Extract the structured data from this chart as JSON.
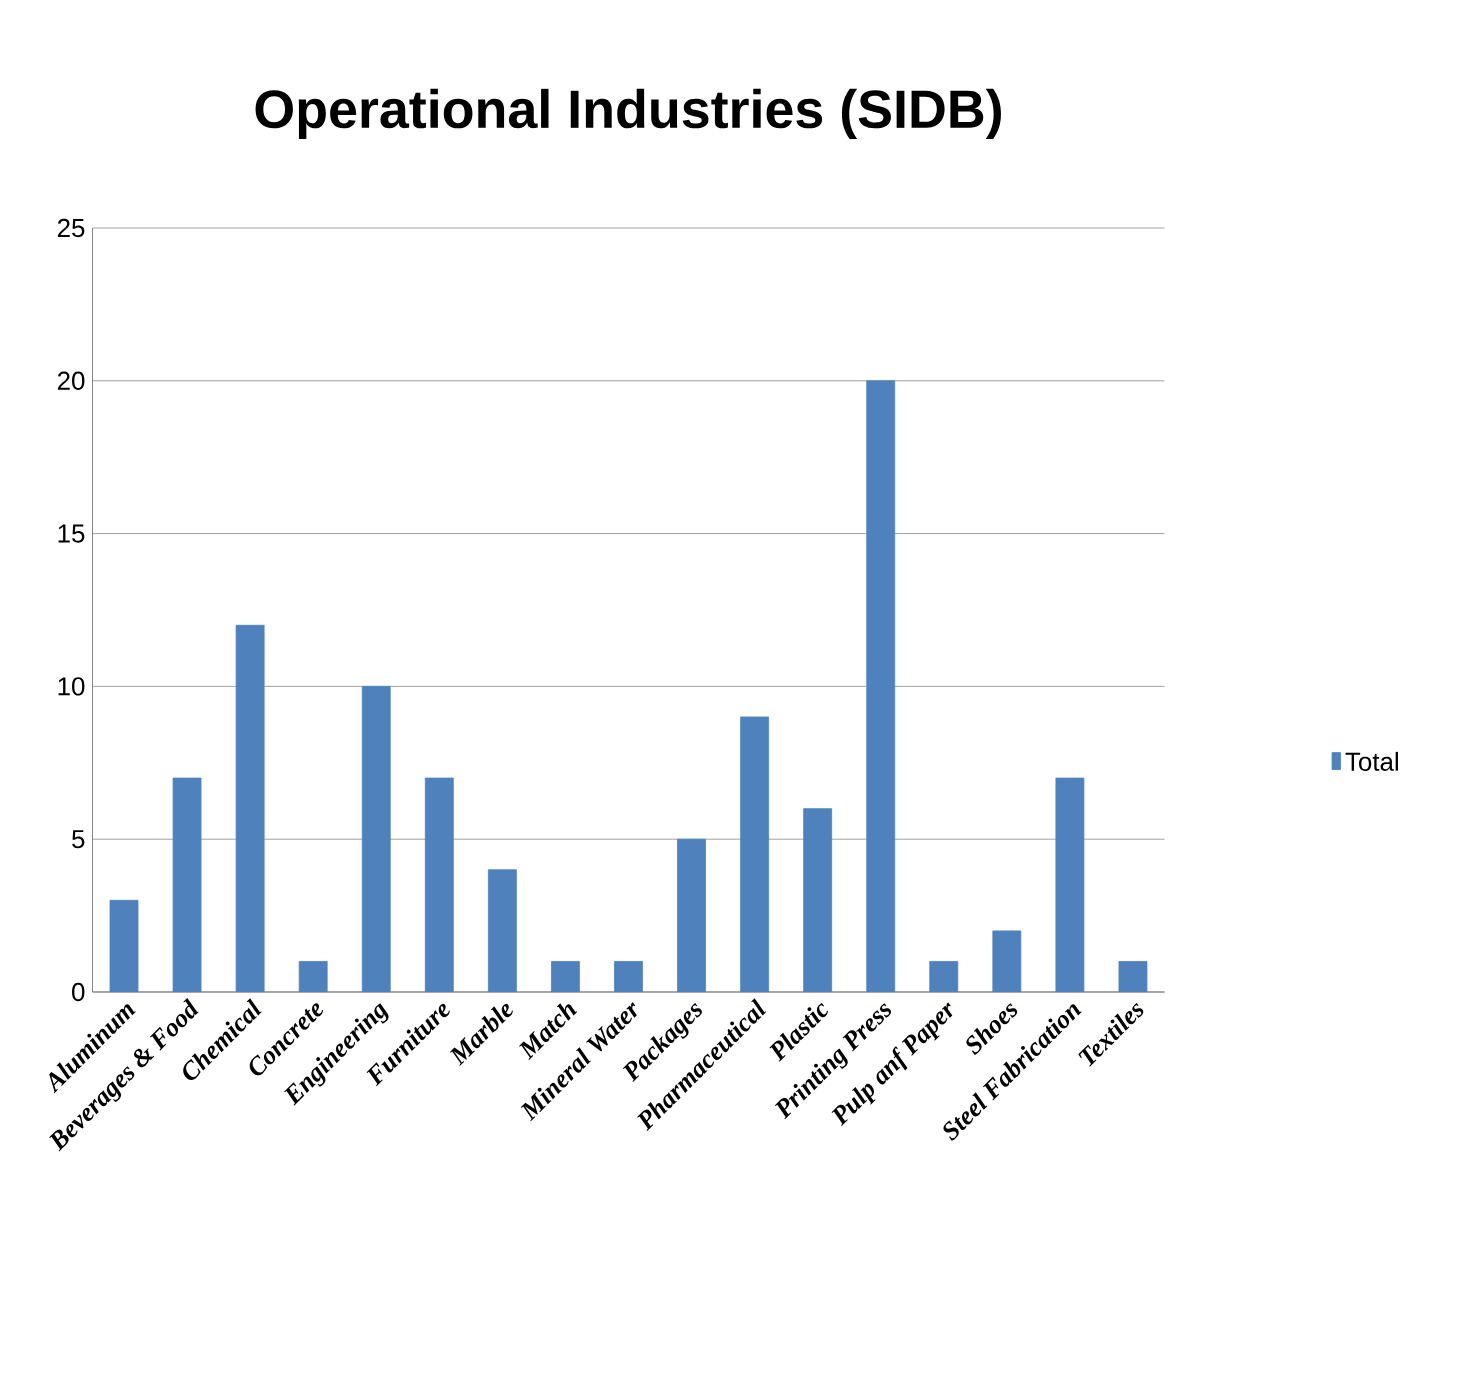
{
  "chart_data": {
    "type": "bar",
    "title": "Operational Industries (SIDB)",
    "categories": [
      "Aluminum",
      "Beverages & Food",
      "Chemical",
      "Concrete",
      "Engineering",
      "Furniture",
      "Marble",
      "Match",
      "Mineral Water",
      "Packages",
      "Pharmaceutical",
      "Plastic",
      "Printing Press",
      "Pulp anf Paper",
      "Shoes",
      "Steel Fabrication",
      "Textiles"
    ],
    "series": [
      {
        "name": "Total",
        "color": "#4f81bd",
        "values": [
          3,
          7,
          12,
          1,
          10,
          7,
          4,
          1,
          1,
          5,
          9,
          6,
          20,
          1,
          2,
          7,
          1
        ]
      }
    ],
    "ylim": [
      0,
      25
    ],
    "yticks": [
      0,
      5,
      10,
      15,
      20,
      25
    ],
    "grid": "y",
    "legend": "right"
  }
}
